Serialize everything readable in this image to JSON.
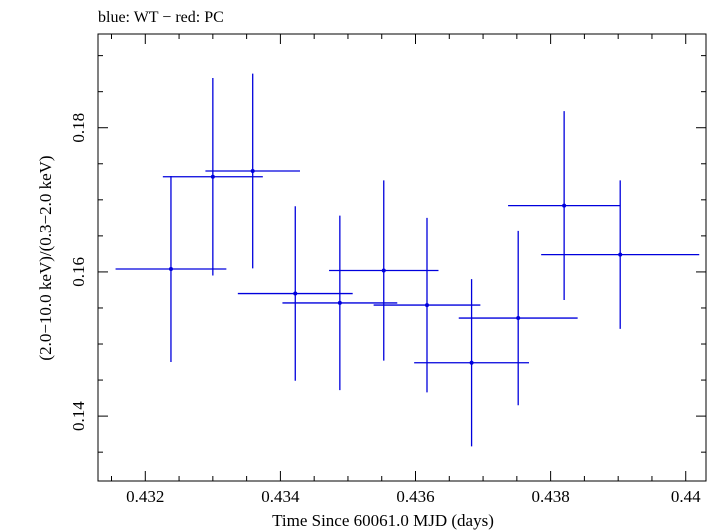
{
  "chart_data": {
    "type": "scatter",
    "title": "blue: WT − red: PC",
    "xlabel": "Time Since 60061.0 MJD (days)",
    "ylabel": "(2.0−10.0 keV)/(0.3−2.0 keV)",
    "xlim": [
      0.4313,
      0.4403
    ],
    "ylim": [
      0.131,
      0.193
    ],
    "x_ticks": [
      0.432,
      0.434,
      0.436,
      0.438,
      0.44
    ],
    "x_tick_labels": [
      "0.432",
      "0.434",
      "0.436",
      "0.438",
      "0.44"
    ],
    "y_ticks": [
      0.14,
      0.16,
      0.18
    ],
    "y_tick_labels": [
      "0.14",
      "0.16",
      "0.18"
    ],
    "y_minor_step": 0.005,
    "x_minor_step": 0.0005,
    "grid": false,
    "series": [
      {
        "color": "#0000dd",
        "points": [
          {
            "x": 0.43238,
            "y": 0.1604,
            "xerr": 0.00082,
            "yerr": 0.0129
          },
          {
            "x": 0.433,
            "y": 0.1732,
            "xerr": 0.00074,
            "yerr": 0.0137
          },
          {
            "x": 0.43359,
            "y": 0.174,
            "xerr": 0.0007,
            "yerr": 0.0135
          },
          {
            "x": 0.43422,
            "y": 0.157,
            "xerr": 0.00085,
            "yerr": 0.0121
          },
          {
            "x": 0.43488,
            "y": 0.1557,
            "xerr": 0.00085,
            "yerr": 0.0121
          },
          {
            "x": 0.43553,
            "y": 0.1602,
            "xerr": 0.00081,
            "yerr": 0.0125
          },
          {
            "x": 0.43617,
            "y": 0.1554,
            "xerr": 0.00079,
            "yerr": 0.0121
          },
          {
            "x": 0.43683,
            "y": 0.1474,
            "xerr": 0.00085,
            "yerr": 0.0116
          },
          {
            "x": 0.43752,
            "y": 0.1536,
            "xerr": 0.00088,
            "yerr": 0.0121
          },
          {
            "x": 0.4382,
            "y": 0.1692,
            "xerr": 0.00083,
            "yerr": 0.0131
          },
          {
            "x": 0.43903,
            "y": 0.1624,
            "xerr": 0.00117,
            "yerr": 0.0103
          }
        ]
      }
    ]
  }
}
